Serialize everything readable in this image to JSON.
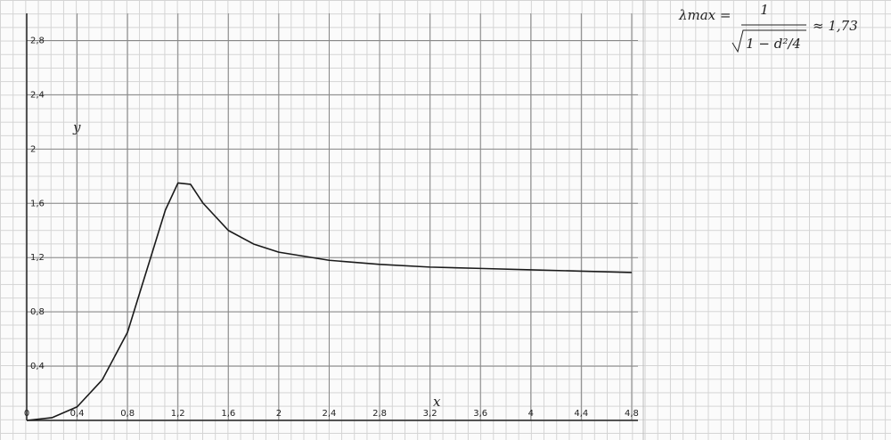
{
  "chart_data": {
    "type": "line",
    "x_label": "x",
    "y_label": "y",
    "annotation": {
      "lhs": "λmax =",
      "numerator": "1",
      "denominator": "1 − d²/4",
      "result": "≈ 1,73"
    },
    "x": [
      0,
      0.2,
      0.4,
      0.6,
      0.8,
      0.9,
      1.0,
      1.1,
      1.2,
      1.3,
      1.4,
      1.6,
      1.8,
      2.0,
      2.4,
      2.8,
      3.2,
      3.6,
      4.0,
      4.4,
      4.8
    ],
    "series": [
      {
        "name": "y",
        "color": "#1a1a1a",
        "values": [
          0,
          0.02,
          0.1,
          0.3,
          0.65,
          0.95,
          1.25,
          1.55,
          1.75,
          1.74,
          1.6,
          1.4,
          1.3,
          1.24,
          1.18,
          1.15,
          1.13,
          1.12,
          1.11,
          1.1,
          1.09
        ]
      }
    ],
    "xlim": [
      0,
      4.85
    ],
    "ylim": [
      0,
      3.0
    ],
    "xticks": [
      0,
      {
        "value": 0.4,
        "label": "0,4"
      },
      {
        "value": 0.8,
        "label": "0,8"
      },
      {
        "value": 1.2,
        "label": "1,2"
      },
      {
        "value": 1.6,
        "label": "1,6"
      },
      2,
      {
        "value": 2.4,
        "label": "2,4"
      },
      {
        "value": 2.8,
        "label": "2,8"
      },
      {
        "value": 3.2,
        "label": "3,2"
      },
      {
        "value": 3.6,
        "label": "3,6"
      },
      4,
      {
        "value": 4.4,
        "label": "4,4"
      },
      {
        "value": 4.8,
        "label": "4,8"
      }
    ],
    "yticks": [
      {
        "value": 0.4,
        "label": "0,4"
      },
      {
        "value": 0.8,
        "label": "0,8"
      },
      {
        "value": 1.2,
        "label": "1,2"
      },
      {
        "value": 1.6,
        "label": "1,6"
      },
      2,
      {
        "value": 2.4,
        "label": "2,4"
      },
      {
        "value": 2.8,
        "label": "2,8"
      }
    ],
    "grid": true
  }
}
